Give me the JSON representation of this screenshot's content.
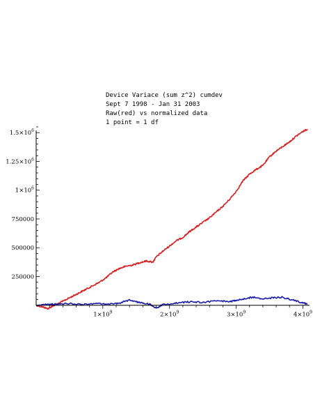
{
  "chart_data": {
    "type": "line",
    "title_lines": [
      "Device Variace (sum z^2) cumdev",
      "Sept 7 1998 - Jan 31 2003",
      "Raw(red) vs normalized data",
      "1 point = 1 df"
    ],
    "xlabel": "",
    "ylabel": "",
    "xlim": [
      0,
      4100000000
    ],
    "ylim": [
      -50000,
      1580000
    ],
    "x_ticks": [
      {
        "value": 1000000000,
        "mantissa": "1×10",
        "exponent": "9"
      },
      {
        "value": 2000000000,
        "mantissa": "2×10",
        "exponent": "9"
      },
      {
        "value": 3000000000,
        "mantissa": "3×10",
        "exponent": "9"
      },
      {
        "value": 4000000000,
        "mantissa": "4×10",
        "exponent": "9"
      }
    ],
    "y_ticks": [
      {
        "value": 250000,
        "mantissa": "250000",
        "exponent": ""
      },
      {
        "value": 500000,
        "mantissa": "500000",
        "exponent": ""
      },
      {
        "value": 750000,
        "mantissa": "750000",
        "exponent": ""
      },
      {
        "value": 1000000,
        "mantissa": "1×10",
        "exponent": "6"
      },
      {
        "value": 1250000,
        "mantissa": "1.25×10",
        "exponent": "6"
      },
      {
        "value": 1500000,
        "mantissa": "1.5×10",
        "exponent": "6"
      }
    ],
    "series": [
      {
        "color": "#d42020",
        "x": [
          0,
          100000000,
          180000000,
          250000000,
          350000000,
          450000000,
          550000000,
          650000000,
          750000000,
          850000000,
          950000000,
          1050000000,
          1150000000,
          1250000000,
          1350000000,
          1450000000,
          1550000000,
          1650000000,
          1750000000,
          1800000000,
          1900000000,
          2000000000,
          2100000000,
          2200000000,
          2300000000,
          2400000000,
          2500000000,
          2600000000,
          2700000000,
          2800000000,
          2900000000,
          3000000000,
          3100000000,
          3200000000,
          3300000000,
          3400000000,
          3500000000,
          3600000000,
          3700000000,
          3800000000,
          3900000000,
          4000000000,
          4070000000
        ],
        "y": [
          0,
          -15000,
          -30000,
          -5000,
          20000,
          50000,
          80000,
          110000,
          140000,
          170000,
          200000,
          240000,
          290000,
          320000,
          340000,
          350000,
          370000,
          385000,
          375000,
          420000,
          470000,
          515000,
          560000,
          590000,
          640000,
          680000,
          720000,
          760000,
          810000,
          860000,
          920000,
          990000,
          1080000,
          1140000,
          1180000,
          1215000,
          1290000,
          1340000,
          1380000,
          1420000,
          1470000,
          1510000,
          1530000
        ]
      },
      {
        "color": "#1a1aaa",
        "x": [
          0,
          150000000,
          300000000,
          500000000,
          700000000,
          900000000,
          1100000000,
          1250000000,
          1400000000,
          1550000000,
          1700000000,
          1800000000,
          1900000000,
          2100000000,
          2300000000,
          2500000000,
          2700000000,
          2900000000,
          3000000000,
          3100000000,
          3250000000,
          3400000000,
          3550000000,
          3700000000,
          3850000000,
          4000000000,
          4070000000
        ],
        "y": [
          0,
          5000,
          10000,
          15000,
          5000,
          15000,
          10000,
          20000,
          45000,
          25000,
          10000,
          -25000,
          5000,
          20000,
          30000,
          25000,
          40000,
          30000,
          45000,
          55000,
          70000,
          55000,
          65000,
          70000,
          45000,
          20000,
          10000
        ]
      }
    ]
  }
}
